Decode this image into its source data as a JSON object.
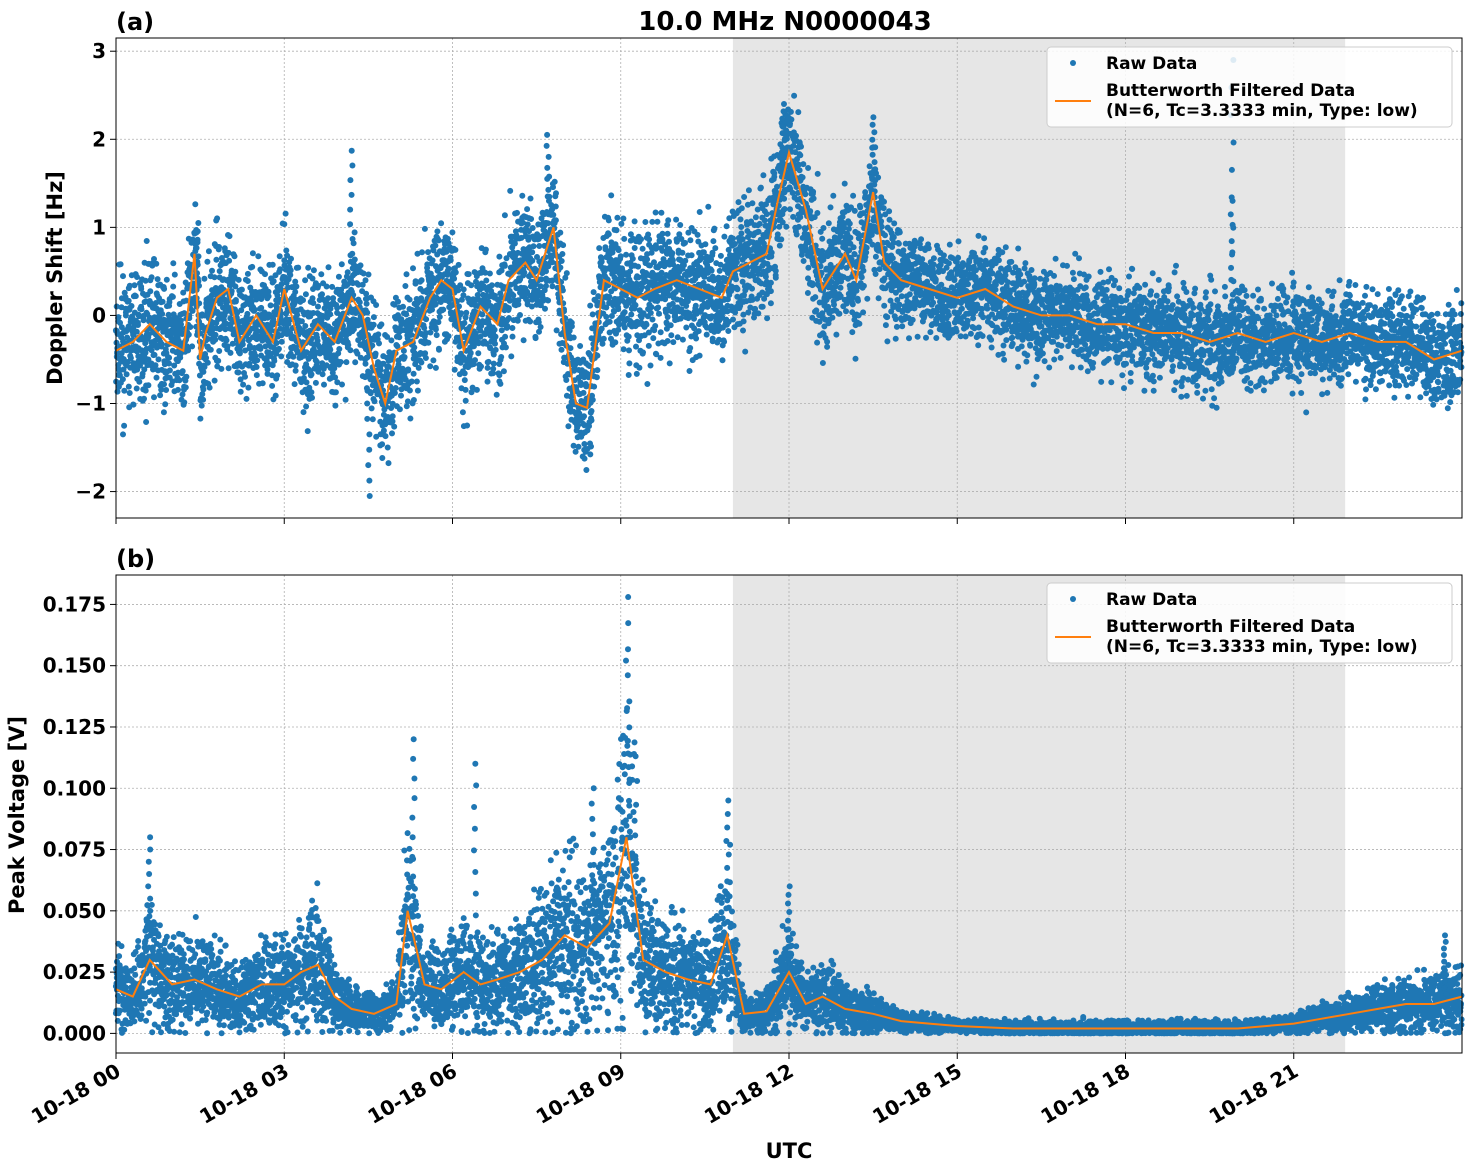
{
  "figure": {
    "title": "10.0 MHz N0000043",
    "xlabel": "UTC",
    "x_tick_labels": [
      "10-18 00",
      "10-18 03",
      "10-18 06",
      "10-18 09",
      "10-18 12",
      "10-18 15",
      "10-18 18",
      "10-18 21"
    ]
  },
  "colors": {
    "raw": "#1f77b4",
    "filtered": "#ff7f0e",
    "shade": "#e6e6e6",
    "grid": "#b0b0b0"
  },
  "chart_data": [
    {
      "panel_label": "(a)",
      "type": "scatter",
      "title": "10.0 MHz N0000043",
      "ylabel": "Doppler Shift [Hz]",
      "xlabel": "",
      "xlim": [
        "2024-10-18T00:00",
        "2024-10-19T00:00"
      ],
      "ylim": [
        -2.3,
        3.15
      ],
      "y_ticks": [
        "−2",
        "−1",
        "0",
        "1",
        "2",
        "3"
      ],
      "y_tick_values": [
        -2,
        -1,
        0,
        1,
        2,
        3
      ],
      "grid": true,
      "legend": {
        "placement": "top-right",
        "entries": [
          "Raw Data",
          "Butterworth Filtered Data\n(N=6, Tc=3.3333 min, Type: low)"
        ]
      },
      "shaded_region": [
        "2024-10-18T11:00",
        "2024-10-18T21:55"
      ],
      "series": [
        {
          "name": "Butterworth Filtered Data\n(N=6, Tc=3.3333 min, Type: low)",
          "kind": "line",
          "x_hours": [
            0,
            0.3,
            0.6,
            0.9,
            1.2,
            1.4,
            1.5,
            1.6,
            1.8,
            2.0,
            2.2,
            2.5,
            2.8,
            3.0,
            3.3,
            3.6,
            3.9,
            4.2,
            4.4,
            4.6,
            4.8,
            5.0,
            5.3,
            5.6,
            5.8,
            6.0,
            6.2,
            6.5,
            6.8,
            7.0,
            7.3,
            7.5,
            7.8,
            8.0,
            8.2,
            8.4,
            8.7,
            9.0,
            9.3,
            9.6,
            10.0,
            10.4,
            10.8,
            11.0,
            11.3,
            11.6,
            11.8,
            12.0,
            12.3,
            12.6,
            12.8,
            13.0,
            13.2,
            13.5,
            13.7,
            14.0,
            14.5,
            15.0,
            15.5,
            16.0,
            16.5,
            17.0,
            17.5,
            18.0,
            18.5,
            19.0,
            19.5,
            20.0,
            20.5,
            21.0,
            21.5,
            22.0,
            22.5,
            23.0,
            23.5,
            24.0
          ],
          "values": [
            -0.4,
            -0.3,
            -0.1,
            -0.3,
            -0.4,
            0.7,
            -0.5,
            -0.2,
            0.2,
            0.3,
            -0.3,
            0.0,
            -0.3,
            0.3,
            -0.4,
            -0.1,
            -0.3,
            0.2,
            0.0,
            -0.6,
            -1.0,
            -0.4,
            -0.3,
            0.2,
            0.4,
            0.3,
            -0.4,
            0.1,
            -0.1,
            0.4,
            0.6,
            0.4,
            1.0,
            -0.2,
            -1.0,
            -1.05,
            0.4,
            0.3,
            0.2,
            0.3,
            0.4,
            0.3,
            0.2,
            0.5,
            0.6,
            0.7,
            1.3,
            1.85,
            1.2,
            0.3,
            0.5,
            0.7,
            0.4,
            1.4,
            0.6,
            0.4,
            0.3,
            0.2,
            0.3,
            0.1,
            0.0,
            0.0,
            -0.1,
            -0.1,
            -0.2,
            -0.2,
            -0.3,
            -0.2,
            -0.3,
            -0.2,
            -0.3,
            -0.2,
            -0.3,
            -0.3,
            -0.5,
            -0.4
          ]
        },
        {
          "name": "Raw Data",
          "kind": "points",
          "spread": 0.35,
          "spikes": [
            {
              "x_hour": 1.45,
              "value": 1.05
            },
            {
              "x_hour": 4.2,
              "value": 1.87
            },
            {
              "x_hour": 4.5,
              "value": -2.05
            },
            {
              "x_hour": 7.7,
              "value": 2.05
            },
            {
              "x_hour": 11.9,
              "value": 2.4
            },
            {
              "x_hour": 13.5,
              "value": 2.25
            },
            {
              "x_hour": 19.9,
              "value": 2.9
            },
            {
              "x_hour": 19.9,
              "value": 1.3
            }
          ]
        }
      ]
    },
    {
      "panel_label": "(b)",
      "type": "scatter",
      "title": "",
      "ylabel": "Peak Voltage [V]",
      "xlabel": "UTC",
      "xlim": [
        "2024-10-18T00:00",
        "2024-10-19T00:00"
      ],
      "ylim": [
        -0.008,
        0.187
      ],
      "y_ticks": [
        "0.000",
        "0.025",
        "0.050",
        "0.075",
        "0.100",
        "0.125",
        "0.150",
        "0.175"
      ],
      "y_tick_values": [
        0,
        0.025,
        0.05,
        0.075,
        0.1,
        0.125,
        0.15,
        0.175
      ],
      "grid": true,
      "legend": {
        "placement": "top-right",
        "entries": [
          "Raw Data",
          "Butterworth Filtered Data\n(N=6, Tc=3.3333 min, Type: low)"
        ]
      },
      "shaded_region": [
        "2024-10-18T11:00",
        "2024-10-18T21:55"
      ],
      "series": [
        {
          "name": "Butterworth Filtered Data\n(N=6, Tc=3.3333 min, Type: low)",
          "kind": "line",
          "x_hours": [
            0,
            0.3,
            0.6,
            1.0,
            1.4,
            1.8,
            2.2,
            2.6,
            3.0,
            3.3,
            3.6,
            3.9,
            4.2,
            4.6,
            5.0,
            5.2,
            5.5,
            5.8,
            6.2,
            6.5,
            6.8,
            7.2,
            7.6,
            8.0,
            8.4,
            8.8,
            9.1,
            9.4,
            9.8,
            10.2,
            10.6,
            10.9,
            11.2,
            11.6,
            12.0,
            12.3,
            12.6,
            13.0,
            13.5,
            14.0,
            14.5,
            15.0,
            16.0,
            17.0,
            18.0,
            19.0,
            20.0,
            21.0,
            21.5,
            22.0,
            22.5,
            23.0,
            23.5,
            24.0
          ],
          "values": [
            0.018,
            0.015,
            0.03,
            0.02,
            0.022,
            0.018,
            0.015,
            0.02,
            0.02,
            0.025,
            0.028,
            0.015,
            0.01,
            0.008,
            0.012,
            0.05,
            0.02,
            0.018,
            0.025,
            0.02,
            0.022,
            0.025,
            0.03,
            0.04,
            0.035,
            0.045,
            0.08,
            0.03,
            0.025,
            0.022,
            0.02,
            0.04,
            0.008,
            0.009,
            0.025,
            0.012,
            0.015,
            0.01,
            0.008,
            0.005,
            0.004,
            0.003,
            0.002,
            0.002,
            0.002,
            0.002,
            0.002,
            0.004,
            0.006,
            0.008,
            0.01,
            0.012,
            0.012,
            0.015
          ]
        },
        {
          "name": "Raw Data",
          "kind": "points",
          "spikes": [
            {
              "x_hour": 0.6,
              "value": 0.08
            },
            {
              "x_hour": 5.3,
              "value": 0.12
            },
            {
              "x_hour": 6.4,
              "value": 0.11
            },
            {
              "x_hour": 8.5,
              "value": 0.1
            },
            {
              "x_hour": 9.15,
              "value": 0.178
            },
            {
              "x_hour": 10.9,
              "value": 0.095
            },
            {
              "x_hour": 12.0,
              "value": 0.06
            },
            {
              "x_hour": 23.7,
              "value": 0.04
            }
          ]
        }
      ]
    }
  ]
}
